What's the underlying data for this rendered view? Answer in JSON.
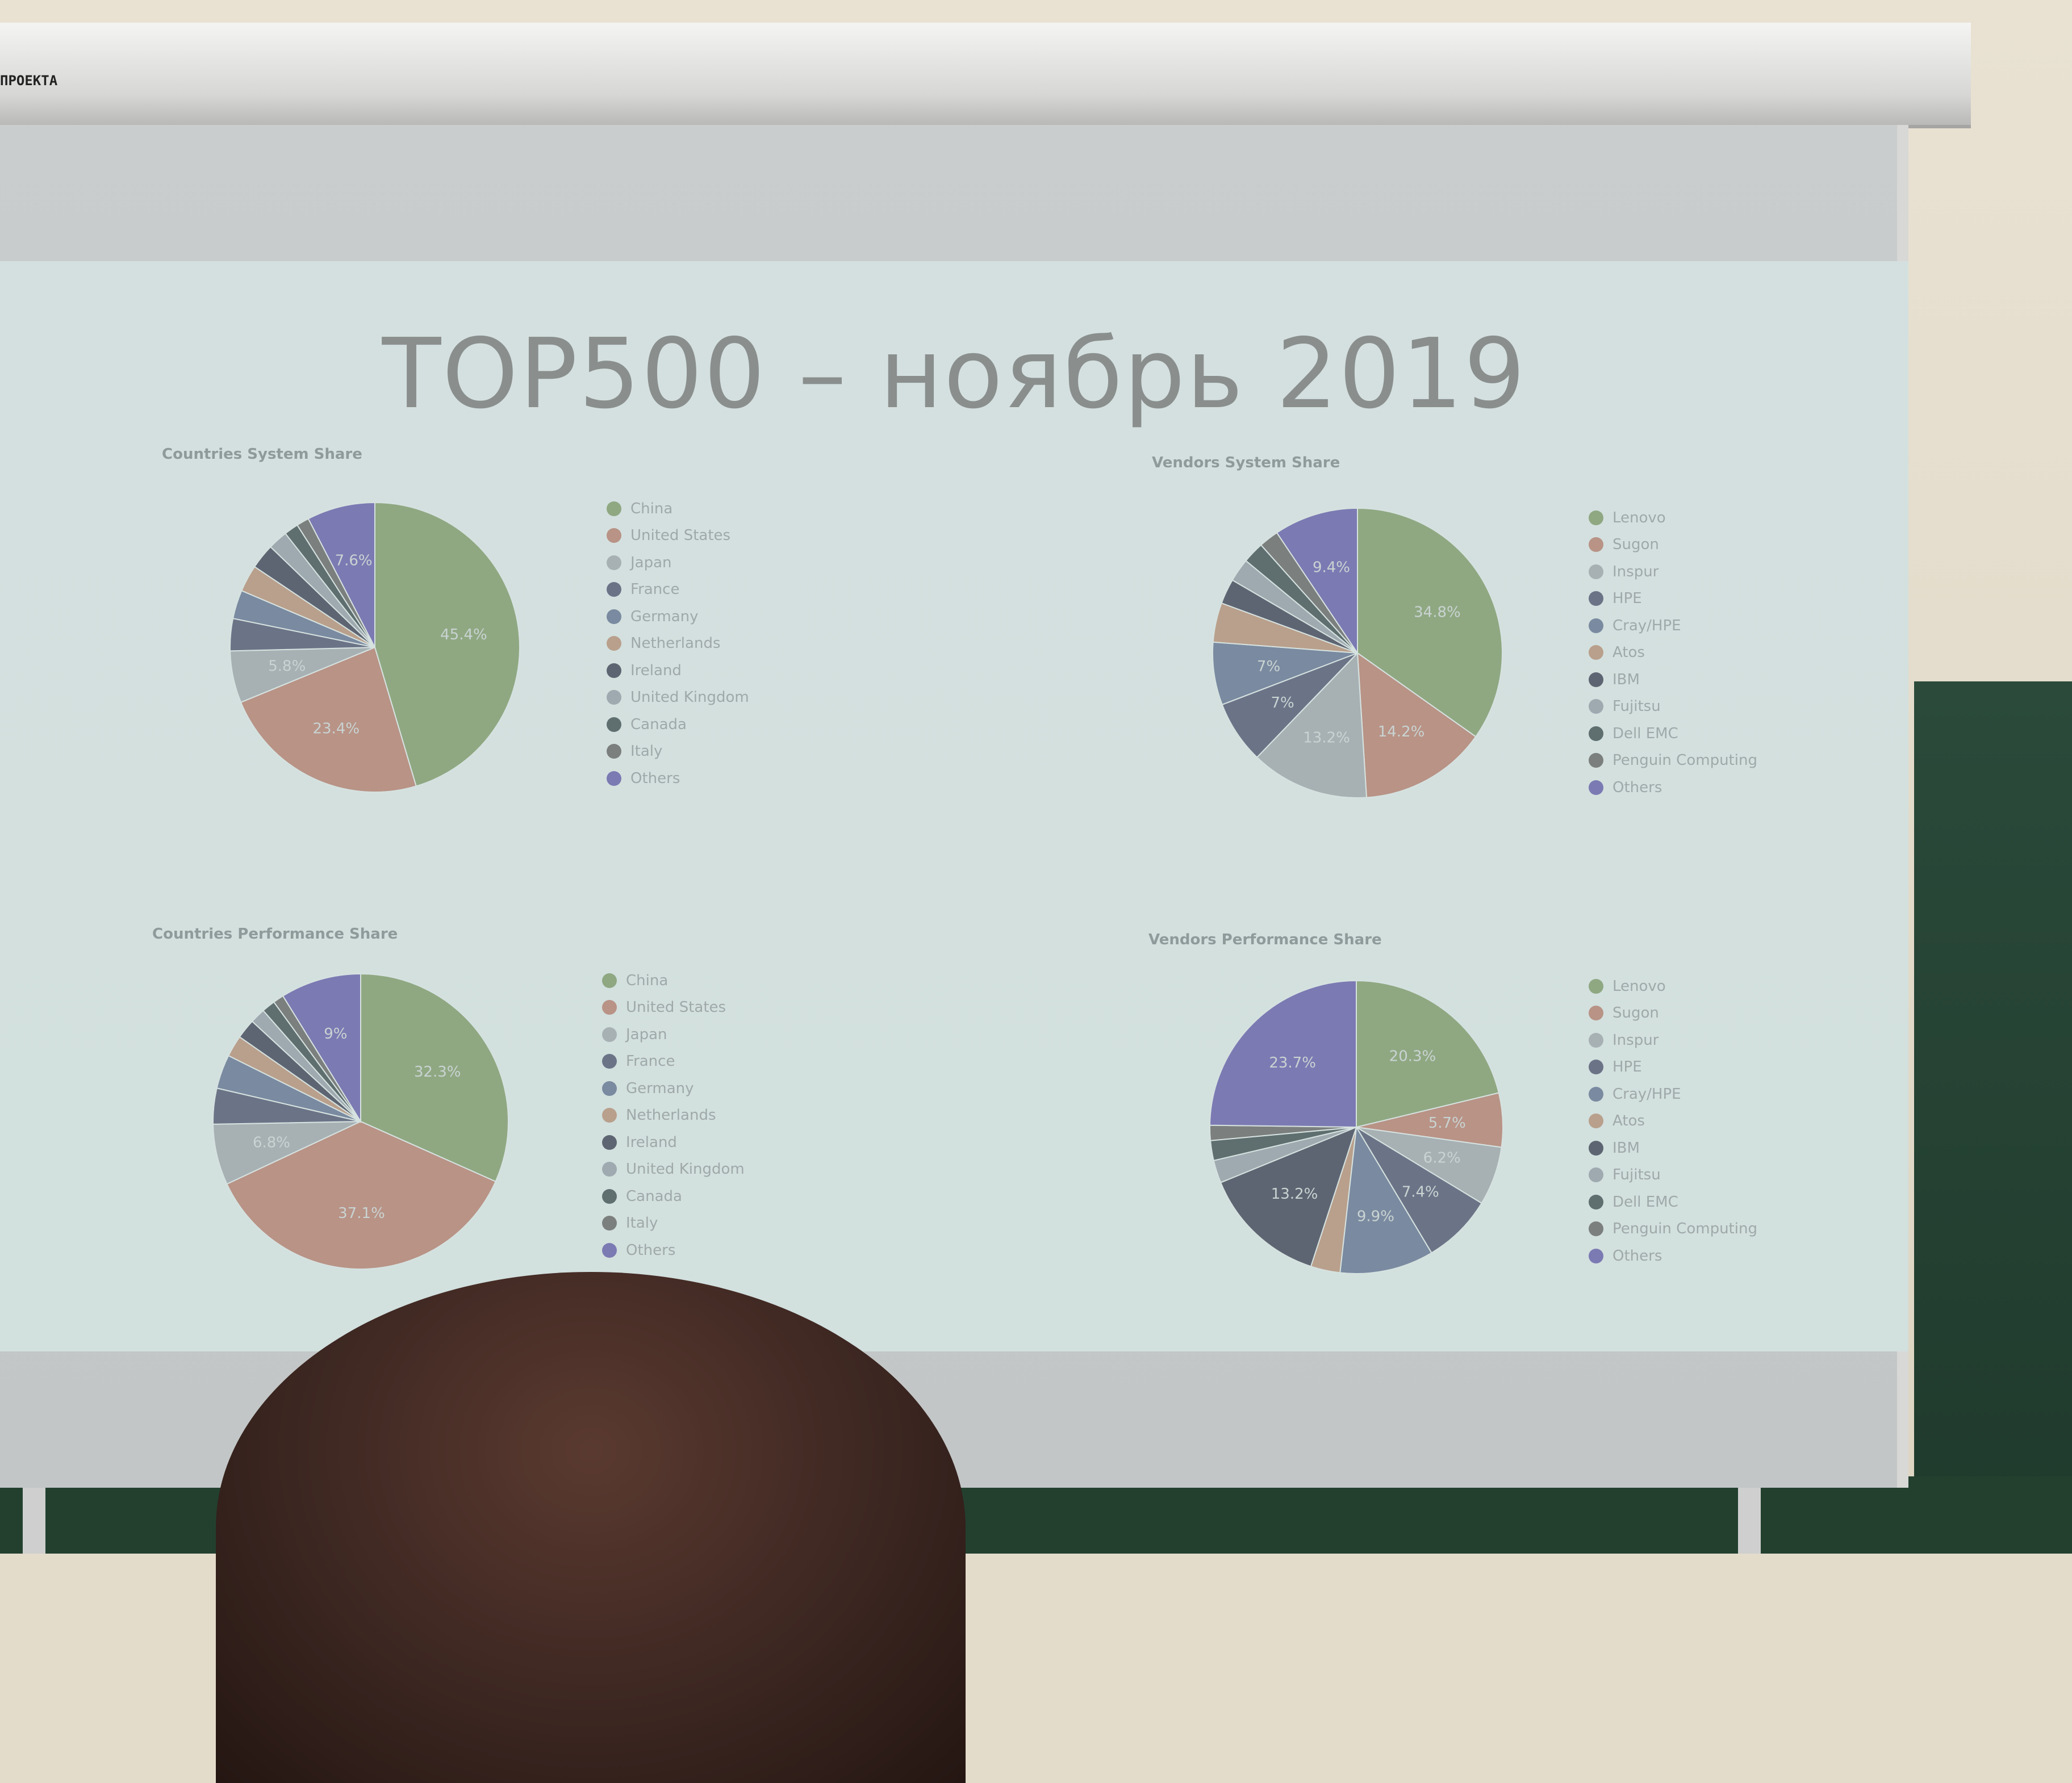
{
  "slide": {
    "title": "TOP500 – ноябрь 2019"
  },
  "projector_label": "ПРОЕКТА",
  "colors": {
    "palette": [
      "#8fa882",
      "#b89386",
      "#a7b1b4",
      "#6b7487",
      "#7a8aa0",
      "#b9a08c",
      "#5e6572",
      "#9eaab0",
      "#5f6f70",
      "#7b7f7d",
      "#7c7ab3"
    ]
  },
  "chart_data": [
    {
      "id": "countries-system",
      "type": "pie",
      "title": "Countries System Share",
      "legend": [
        "China",
        "United States",
        "Japan",
        "France",
        "Germany",
        "Netherlands",
        "Ireland",
        "United Kingdom",
        "Canada",
        "Italy",
        "Others"
      ],
      "values": [
        45.4,
        23.4,
        5.8,
        3.6,
        3.2,
        3,
        2.8,
        2.2,
        1.6,
        1.4,
        7.6
      ],
      "labels": [
        "45.4%",
        "23.4%",
        "5.8%",
        "",
        "",
        "",
        "",
        "",
        "",
        "",
        "7.6%"
      ]
    },
    {
      "id": "vendors-system",
      "type": "pie",
      "title": "Vendors System Share",
      "legend": [
        "Lenovo",
        "Sugon",
        "Inspur",
        "HPE",
        "Cray/HPE",
        "Atos",
        "IBM",
        "Fujitsu",
        "Dell EMC",
        "Penguin Computing",
        "Others"
      ],
      "values": [
        34.8,
        14.2,
        13.2,
        7,
        7,
        4.4,
        2.8,
        2.6,
        2.4,
        2.2,
        9.4
      ],
      "labels": [
        "34.8%",
        "14.2%",
        "13.2%",
        "7%",
        "7%",
        "",
        "",
        "",
        "",
        "",
        "9.4%"
      ]
    },
    {
      "id": "countries-performance",
      "type": "pie",
      "title": "Countries Performance Share",
      "legend": [
        "China",
        "United States",
        "Japan",
        "France",
        "Germany",
        "Netherlands",
        "Ireland",
        "United Kingdom",
        "Canada",
        "Italy",
        "Others"
      ],
      "values": [
        32.3,
        37.1,
        6.8,
        4,
        3.8,
        2.4,
        2.2,
        1.7,
        1.5,
        1.2,
        9
      ],
      "labels": [
        "32.3%",
        "37.1%",
        "6.8%",
        "",
        "",
        "",
        "",
        "",
        "",
        "",
        "9%"
      ]
    },
    {
      "id": "vendors-performance",
      "type": "pie",
      "title": "Vendors Performance Share",
      "legend": [
        "Lenovo",
        "Sugon",
        "Inspur",
        "HPE",
        "Cray/HPE",
        "Atos",
        "IBM",
        "Fujitsu",
        "Dell EMC",
        "Penguin Computing",
        "Others"
      ],
      "values": [
        20.3,
        5.7,
        6.2,
        7.4,
        9.9,
        3.1,
        13.2,
        2.4,
        2.1,
        1.6,
        23.7
      ],
      "labels": [
        "20.3%",
        "5.7%",
        "6.2%",
        "7.4%",
        "9.9%",
        "",
        "13.2%",
        "",
        "",
        "",
        "23.7%"
      ]
    }
  ]
}
